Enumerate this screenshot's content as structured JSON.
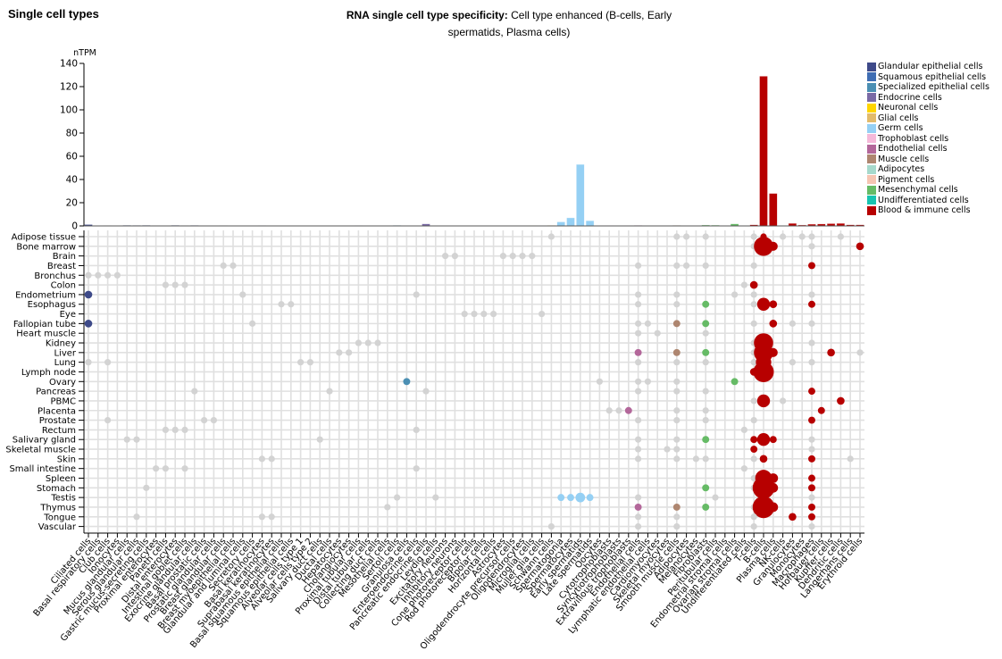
{
  "header": {
    "page_title": "Single cell types",
    "chart_title_bold": "RNA single cell type specificity:",
    "chart_title_rest": " Cell type enhanced (B-cells, Early spermatids, Plasma cells)"
  },
  "legend": [
    {
      "label": "Glandular epithelial cells",
      "color": "#3e4a89"
    },
    {
      "label": "Squamous epithelial cells",
      "color": "#3f6db3"
    },
    {
      "label": "Specialized epithelial cells",
      "color": "#4b8fb3"
    },
    {
      "label": "Endocrine cells",
      "color": "#7a6aa5"
    },
    {
      "label": "Neuronal cells",
      "color": "#ffd500"
    },
    {
      "label": "Glial cells",
      "color": "#e2bb6b"
    },
    {
      "label": "Germ cells",
      "color": "#95d0f4"
    },
    {
      "label": "Trophoblast cells",
      "color": "#f5b9d9"
    },
    {
      "label": "Endothelial cells",
      "color": "#b3679a"
    },
    {
      "label": "Muscle cells",
      "color": "#ae8670"
    },
    {
      "label": "Adipocytes",
      "color": "#a6d9cc"
    },
    {
      "label": "Pigment cells",
      "color": "#f6c5b2"
    },
    {
      "label": "Mesenchymal cells",
      "color": "#66bb66"
    },
    {
      "label": "Undifferentiated cells",
      "color": "#17c4b0"
    },
    {
      "label": "Blood & immune cells",
      "color": "#b70000"
    }
  ],
  "chart_data": {
    "type": "bar",
    "title": "RNA single cell type specificity: Cell type enhanced (B-cells, Early spermatids, Plasma cells)",
    "ylabel": "nTPM",
    "ylim": [
      0,
      140
    ],
    "yticks": [
      0,
      20,
      40,
      60,
      80,
      100,
      120,
      140
    ],
    "grid": false,
    "legend_position": "right",
    "categories": [
      "Ciliated cells",
      "Basal respiratory cells",
      "Club cells",
      "Ionocytes",
      "Mucus glandular cells",
      "Serous glandular cells",
      "Gastric mucus-secreting cells",
      "Proximal enterocytes",
      "Paneth cells",
      "Distal enterocytes",
      "Intestinal goblet cells",
      "Exocrine glandular cells",
      "Basal prostatic cells",
      "Prostatic glandular cells",
      "Breast glandular cells",
      "Breast myoepithelial cells",
      "Glandular and luminal cells",
      "Secretory cells",
      "Basal keratinocytes",
      "Suprabasal keratinocytes",
      "Basal squamous epithelial cells",
      "Squamous epithelial cells",
      "Alveolar cells type 1",
      "Alveolar cells type 2",
      "Salivary duct cells",
      "Ductal cells",
      "Hepatocytes",
      "Cholangiocytes",
      "Proximal tubular cells",
      "Distal tubular cells",
      "Collecting duct cells",
      "Mesothelial cells",
      "Sertoli cells",
      "Granulosa cells",
      "Enteroendocrine cells",
      "Pancreatic endocrine cells",
      "Leydig cells",
      "Excitatory neurons",
      "Inhibitory neurons",
      "Cone photoreceptor cells",
      "Rod photoreceptor cells",
      "Bipolar cells",
      "Horizontal cells",
      "Astrocytes",
      "Oligodendrocyte precursor cells",
      "Oligodendrocytes",
      "Microglial cells",
      "Muller glia cells",
      "Schwann cells",
      "Spermatogonia",
      "Spermatocytes",
      "Early spermatids",
      "Late spermatids",
      "Oocytes",
      "Cytotrophoblasts",
      "Syncytiotrophoblasts",
      "Extravillous trophoblasts",
      "Endothelial cells",
      "Lymphatic endothelial cells",
      "Cardiomyocytes",
      "Skeletal myocytes",
      "Smooth muscle cells",
      "Adipocytes",
      "Melanocytes",
      "Fibroblasts",
      "Peritubular cells",
      "Endometrial stromal cells",
      "Ovarian stromal cells",
      "Undifferentiated cells",
      "T-cells",
      "B-cells",
      "Plasma cells",
      "NK-cells",
      "Granulocytes",
      "Monocytes",
      "Macrophages",
      "Hofbauer cells",
      "Kupffer cells",
      "Dendritic cells",
      "Langerhans cells",
      "Erythroid cells"
    ],
    "groups": [
      0,
      0,
      0,
      0,
      0,
      0,
      0,
      0,
      0,
      0,
      0,
      0,
      0,
      0,
      0,
      0,
      0,
      0,
      1,
      1,
      1,
      1,
      2,
      2,
      2,
      2,
      2,
      2,
      2,
      2,
      2,
      2,
      2,
      2,
      3,
      3,
      3,
      4,
      4,
      4,
      4,
      4,
      4,
      5,
      5,
      5,
      5,
      5,
      5,
      6,
      6,
      6,
      6,
      6,
      7,
      7,
      7,
      8,
      8,
      9,
      9,
      9,
      10,
      11,
      12,
      12,
      12,
      12,
      13,
      14,
      14,
      14,
      14,
      14,
      14,
      14,
      14,
      14,
      14,
      14,
      14
    ],
    "values": [
      1.2,
      0.3,
      0.4,
      0.3,
      0.6,
      0.5,
      0.6,
      0.4,
      0.3,
      0.6,
      0.4,
      0.5,
      0.3,
      0.3,
      0.4,
      0.3,
      0.3,
      0.3,
      0.4,
      0.3,
      0.3,
      0.3,
      0.3,
      0.3,
      0.3,
      0.3,
      0.3,
      0.3,
      0.4,
      0.3,
      0.3,
      0.3,
      0.5,
      0.3,
      0.3,
      1.8,
      0.3,
      0.3,
      0.3,
      0.3,
      0.3,
      0.3,
      0.3,
      0.3,
      0.3,
      0.3,
      0.4,
      0.3,
      0.5,
      3.5,
      7.0,
      53.0,
      4.5,
      0.3,
      0.4,
      0.3,
      0.4,
      0.5,
      0.3,
      0.3,
      0.3,
      0.5,
      0.3,
      0.3,
      0.8,
      0.7,
      0.3,
      1.8,
      0.3,
      1.0,
      129.0,
      28.0,
      0.3,
      2.2,
      0.8,
      1.5,
      1.7,
      2.0,
      2.2,
      1.0,
      1.0
    ]
  },
  "dotmatrix": {
    "tissues": [
      "Adipose tissue",
      "Bone marrow",
      "Brain",
      "Breast",
      "Bronchus",
      "Colon",
      "Endometrium",
      "Esophagus",
      "Eye",
      "Fallopian tube",
      "Heart muscle",
      "Kidney",
      "Liver",
      "Lung",
      "Lymph node",
      "Ovary",
      "Pancreas",
      "PBMC",
      "Placenta",
      "Prostate",
      "Rectum",
      "Salivary gland",
      "Skeletal muscle",
      "Skin",
      "Small intestine",
      "Spleen",
      "Stomach",
      "Testis",
      "Thymus",
      "Tongue",
      "Vascular"
    ],
    "dots": [
      [
        0,
        48,
        "g",
        1
      ],
      [
        0,
        61,
        "g",
        1
      ],
      [
        0,
        62,
        "g",
        1
      ],
      [
        0,
        64,
        "g",
        1
      ],
      [
        0,
        69,
        "g",
        1
      ],
      [
        0,
        70,
        "r",
        1
      ],
      [
        0,
        72,
        "g",
        1
      ],
      [
        0,
        74,
        "g",
        1
      ],
      [
        0,
        75,
        "g",
        1
      ],
      [
        0,
        78,
        "g",
        1
      ],
      [
        1,
        69,
        "g",
        1
      ],
      [
        1,
        70,
        "r",
        3
      ],
      [
        1,
        71,
        "r",
        1.4
      ],
      [
        1,
        75,
        "g",
        1
      ],
      [
        1,
        80,
        "r",
        1.2
      ],
      [
        2,
        37,
        "g",
        1
      ],
      [
        2,
        38,
        "g",
        1
      ],
      [
        2,
        43,
        "g",
        1
      ],
      [
        2,
        44,
        "g",
        1
      ],
      [
        2,
        45,
        "g",
        1
      ],
      [
        2,
        46,
        "g",
        1
      ],
      [
        3,
        14,
        "g",
        1
      ],
      [
        3,
        15,
        "g",
        1
      ],
      [
        3,
        57,
        "g",
        1
      ],
      [
        3,
        61,
        "g",
        1
      ],
      [
        3,
        62,
        "g",
        1
      ],
      [
        3,
        64,
        "g",
        1
      ],
      [
        3,
        69,
        "g",
        1
      ],
      [
        3,
        75,
        "r",
        1.1
      ],
      [
        4,
        0,
        "g",
        1
      ],
      [
        4,
        1,
        "g",
        1
      ],
      [
        4,
        2,
        "g",
        1
      ],
      [
        4,
        3,
        "g",
        1
      ],
      [
        5,
        8,
        "g",
        1
      ],
      [
        5,
        9,
        "g",
        1
      ],
      [
        5,
        10,
        "g",
        1
      ],
      [
        5,
        68,
        "g",
        1
      ],
      [
        5,
        69,
        "r",
        1.2
      ],
      [
        6,
        0,
        "ge",
        1.2
      ],
      [
        6,
        16,
        "g",
        1
      ],
      [
        6,
        34,
        "g",
        1
      ],
      [
        6,
        57,
        "g",
        1
      ],
      [
        6,
        61,
        "g",
        1
      ],
      [
        6,
        67,
        "g",
        1
      ],
      [
        6,
        69,
        "g",
        1
      ],
      [
        6,
        75,
        "g",
        1
      ],
      [
        7,
        20,
        "g",
        1
      ],
      [
        7,
        21,
        "g",
        1
      ],
      [
        7,
        57,
        "g",
        1
      ],
      [
        7,
        61,
        "g",
        1
      ],
      [
        7,
        64,
        "mes",
        1.1
      ],
      [
        7,
        69,
        "g",
        1
      ],
      [
        7,
        70,
        "r",
        2
      ],
      [
        7,
        71,
        "r",
        1.2
      ],
      [
        7,
        75,
        "r",
        1.1
      ],
      [
        8,
        39,
        "g",
        1
      ],
      [
        8,
        40,
        "g",
        1
      ],
      [
        8,
        41,
        "g",
        1
      ],
      [
        8,
        42,
        "g",
        1
      ],
      [
        8,
        47,
        "g",
        1
      ],
      [
        9,
        0,
        "ge",
        1.2
      ],
      [
        9,
        17,
        "g",
        1
      ],
      [
        9,
        57,
        "g",
        1
      ],
      [
        9,
        58,
        "g",
        1
      ],
      [
        9,
        61,
        "mus",
        1.1
      ],
      [
        9,
        64,
        "mes",
        1.1
      ],
      [
        9,
        69,
        "g",
        1
      ],
      [
        9,
        71,
        "r",
        1.2
      ],
      [
        9,
        73,
        "g",
        1
      ],
      [
        9,
        75,
        "g",
        1
      ],
      [
        10,
        57,
        "g",
        1
      ],
      [
        10,
        59,
        "g",
        1
      ],
      [
        10,
        64,
        "g",
        1
      ],
      [
        11,
        28,
        "g",
        1
      ],
      [
        11,
        29,
        "g",
        1
      ],
      [
        11,
        30,
        "g",
        1
      ],
      [
        11,
        69,
        "g",
        1
      ],
      [
        11,
        70,
        "r",
        3
      ],
      [
        11,
        75,
        "g",
        1
      ],
      [
        12,
        26,
        "g",
        1
      ],
      [
        12,
        27,
        "g",
        1
      ],
      [
        12,
        57,
        "end",
        1.1
      ],
      [
        12,
        61,
        "mus",
        1.1
      ],
      [
        12,
        64,
        "mes",
        1.1
      ],
      [
        12,
        69,
        "g",
        1
      ],
      [
        12,
        70,
        "r",
        3
      ],
      [
        12,
        71,
        "r",
        1.4
      ],
      [
        12,
        77,
        "r",
        1.2
      ],
      [
        12,
        80,
        "g",
        1
      ],
      [
        13,
        0,
        "g",
        1
      ],
      [
        13,
        2,
        "g",
        1
      ],
      [
        13,
        22,
        "g",
        1
      ],
      [
        13,
        23,
        "g",
        1
      ],
      [
        13,
        57,
        "g",
        1
      ],
      [
        13,
        61,
        "g",
        1
      ],
      [
        13,
        64,
        "g",
        1
      ],
      [
        13,
        69,
        "g",
        1
      ],
      [
        13,
        70,
        "r",
        2.4
      ],
      [
        13,
        73,
        "g",
        1
      ],
      [
        13,
        75,
        "g",
        1
      ],
      [
        14,
        69,
        "r",
        1.2
      ],
      [
        14,
        70,
        "r",
        3.2
      ],
      [
        15,
        33,
        "spe",
        1.1
      ],
      [
        15,
        53,
        "g",
        1
      ],
      [
        15,
        57,
        "g",
        1
      ],
      [
        15,
        58,
        "g",
        1
      ],
      [
        15,
        61,
        "g",
        1
      ],
      [
        15,
        67,
        "mes",
        1.1
      ],
      [
        16,
        11,
        "g",
        1
      ],
      [
        16,
        25,
        "g",
        1
      ],
      [
        16,
        35,
        "g",
        1
      ],
      [
        16,
        57,
        "g",
        1
      ],
      [
        16,
        61,
        "g",
        1
      ],
      [
        16,
        64,
        "g",
        1
      ],
      [
        16,
        75,
        "r",
        1.1
      ],
      [
        17,
        69,
        "g",
        1
      ],
      [
        17,
        70,
        "r",
        2
      ],
      [
        17,
        72,
        "g",
        1
      ],
      [
        17,
        78,
        "r",
        1.2
      ],
      [
        18,
        54,
        "g",
        1
      ],
      [
        18,
        55,
        "g",
        1
      ],
      [
        18,
        56,
        "end",
        1.1
      ],
      [
        18,
        61,
        "g",
        1
      ],
      [
        18,
        64,
        "g",
        1
      ],
      [
        18,
        76,
        "r",
        1.1
      ],
      [
        19,
        2,
        "g",
        1
      ],
      [
        19,
        12,
        "g",
        1
      ],
      [
        19,
        13,
        "g",
        1
      ],
      [
        19,
        57,
        "g",
        1
      ],
      [
        19,
        61,
        "g",
        1
      ],
      [
        19,
        64,
        "g",
        1
      ],
      [
        19,
        69,
        "g",
        1
      ],
      [
        19,
        75,
        "r",
        1.1
      ],
      [
        20,
        8,
        "g",
        1
      ],
      [
        20,
        9,
        "g",
        1
      ],
      [
        20,
        10,
        "g",
        1
      ],
      [
        20,
        34,
        "g",
        1
      ],
      [
        20,
        68,
        "g",
        1
      ],
      [
        21,
        4,
        "g",
        1
      ],
      [
        21,
        5,
        "g",
        1
      ],
      [
        21,
        24,
        "g",
        1
      ],
      [
        21,
        57,
        "g",
        1
      ],
      [
        21,
        61,
        "g",
        1
      ],
      [
        21,
        64,
        "mes",
        1.1
      ],
      [
        21,
        69,
        "r",
        1.1
      ],
      [
        21,
        70,
        "r",
        2
      ],
      [
        21,
        71,
        "r",
        1.1
      ],
      [
        21,
        75,
        "g",
        1
      ],
      [
        22,
        57,
        "g",
        1
      ],
      [
        22,
        60,
        "g",
        1
      ],
      [
        22,
        61,
        "g",
        1
      ],
      [
        22,
        69,
        "r",
        1.1
      ],
      [
        22,
        75,
        "g",
        1
      ],
      [
        23,
        18,
        "g",
        1
      ],
      [
        23,
        19,
        "g",
        1
      ],
      [
        23,
        57,
        "g",
        1
      ],
      [
        23,
        61,
        "g",
        1
      ],
      [
        23,
        63,
        "g",
        1
      ],
      [
        23,
        64,
        "g",
        1
      ],
      [
        23,
        69,
        "g",
        1
      ],
      [
        23,
        70,
        "r",
        1.2
      ],
      [
        23,
        75,
        "r",
        1.1
      ],
      [
        23,
        79,
        "g",
        1
      ],
      [
        24,
        7,
        "g",
        1
      ],
      [
        24,
        8,
        "g",
        1
      ],
      [
        24,
        10,
        "g",
        1
      ],
      [
        24,
        34,
        "g",
        1
      ],
      [
        24,
        68,
        "g",
        1
      ],
      [
        25,
        69,
        "g",
        1
      ],
      [
        25,
        70,
        "r",
        2.6
      ],
      [
        25,
        71,
        "r",
        1.5
      ],
      [
        25,
        75,
        "r",
        1.1
      ],
      [
        26,
        6,
        "g",
        1
      ],
      [
        26,
        64,
        "mes",
        1.1
      ],
      [
        26,
        69,
        "g",
        1
      ],
      [
        26,
        70,
        "r",
        3.4
      ],
      [
        26,
        71,
        "r",
        1.5
      ],
      [
        26,
        75,
        "r",
        1.1
      ],
      [
        27,
        32,
        "g",
        1
      ],
      [
        27,
        36,
        "g",
        1
      ],
      [
        27,
        49,
        "germ",
        1.1
      ],
      [
        27,
        50,
        "germ",
        1.1
      ],
      [
        27,
        51,
        "germ",
        1.5
      ],
      [
        27,
        52,
        "germ",
        1.1
      ],
      [
        27,
        57,
        "g",
        1
      ],
      [
        27,
        65,
        "g",
        1
      ],
      [
        27,
        75,
        "g",
        1
      ],
      [
        28,
        31,
        "g",
        1
      ],
      [
        28,
        57,
        "end",
        1.1
      ],
      [
        28,
        61,
        "mus",
        1.1
      ],
      [
        28,
        64,
        "mes",
        1.1
      ],
      [
        28,
        69,
        "g",
        1
      ],
      [
        28,
        70,
        "r",
        3.4
      ],
      [
        28,
        71,
        "r",
        1.5
      ],
      [
        28,
        75,
        "r",
        1.1
      ],
      [
        29,
        5,
        "g",
        1
      ],
      [
        29,
        18,
        "g",
        1
      ],
      [
        29,
        19,
        "g",
        1
      ],
      [
        29,
        57,
        "g",
        1
      ],
      [
        29,
        61,
        "g",
        1
      ],
      [
        29,
        69,
        "g",
        1
      ],
      [
        29,
        73,
        "r",
        1.2
      ],
      [
        29,
        75,
        "r",
        1.1
      ],
      [
        30,
        48,
        "g",
        1
      ],
      [
        30,
        57,
        "g",
        1
      ],
      [
        30,
        61,
        "g",
        1
      ],
      [
        30,
        69,
        "g",
        1
      ],
      [
        30,
        75,
        "g",
        1
      ]
    ]
  }
}
